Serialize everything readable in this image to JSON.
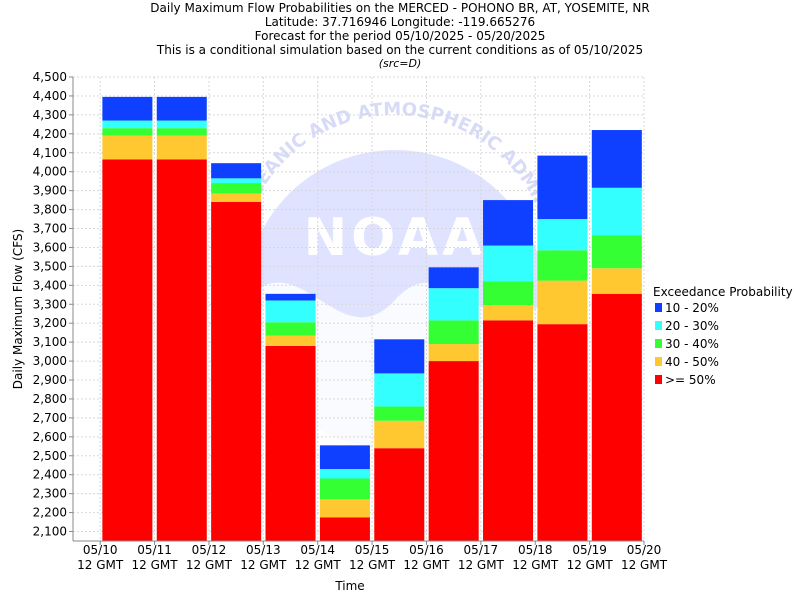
{
  "chart_data": {
    "type": "bar",
    "stacked": true,
    "title_lines": [
      "Daily Maximum Flow Probabilities on the MERCED - POHONO BR, AT, YOSEMITE, NR",
      "Latitude: 37.716946 Longitude: -119.665276",
      "Forecast for the period 05/10/2025 - 05/20/2025",
      "This is a conditional simulation based on the current conditions as of 05/10/2025"
    ],
    "subtitle": "(src=D)",
    "xlabel": "Time",
    "ylabel": "Daily Maximum Flow (CFS)",
    "ylim": [
      2050,
      4500
    ],
    "yticks": [
      2100,
      2200,
      2300,
      2400,
      2500,
      2600,
      2700,
      2800,
      2900,
      3000,
      3100,
      3200,
      3300,
      3400,
      3500,
      3600,
      3700,
      3800,
      3900,
      4000,
      4100,
      4200,
      4300,
      4400,
      4500
    ],
    "ytick_labels": [
      "2,100",
      "2,200",
      "2,300",
      "2,400",
      "2,500",
      "2,600",
      "2,700",
      "2,800",
      "2,900",
      "3,000",
      "3,100",
      "3,200",
      "3,300",
      "3,400",
      "3,500",
      "3,600",
      "3,700",
      "3,800",
      "3,900",
      "4,000",
      "4,100",
      "4,200",
      "4,300",
      "4,400",
      "4,500"
    ],
    "xticks": [
      {
        "date": "05/10",
        "time": "12 GMT"
      },
      {
        "date": "05/11",
        "time": "12 GMT"
      },
      {
        "date": "05/12",
        "time": "12 GMT"
      },
      {
        "date": "05/13",
        "time": "12 GMT"
      },
      {
        "date": "05/14",
        "time": "12 GMT"
      },
      {
        "date": "05/15",
        "time": "12 GMT"
      },
      {
        "date": "05/16",
        "time": "12 GMT"
      },
      {
        "date": "05/17",
        "time": "12 GMT"
      },
      {
        "date": "05/18",
        "time": "12 GMT"
      },
      {
        "date": "05/19",
        "time": "12 GMT"
      },
      {
        "date": "05/20",
        "time": "12 GMT"
      }
    ],
    "categories": [
      "05/10",
      "05/11",
      "05/12",
      "05/13",
      "05/14",
      "05/15",
      "05/16",
      "05/17",
      "05/18",
      "05/19"
    ],
    "series": [
      {
        "name": ">= 50%",
        "color": "#ff0000",
        "top": [
          4065,
          4065,
          3840,
          3080,
          2175,
          2540,
          3000,
          3215,
          3195,
          3355
        ]
      },
      {
        "name": "40 - 50%",
        "color": "#ffc830",
        "top": [
          4190,
          4190,
          3885,
          3135,
          2270,
          2685,
          3090,
          3295,
          3425,
          3490
        ]
      },
      {
        "name": "30 - 40%",
        "color": "#33ff33",
        "top": [
          4230,
          4230,
          3940,
          3205,
          2380,
          2760,
          3215,
          3420,
          3585,
          3665
        ]
      },
      {
        "name": "20 - 30%",
        "color": "#33ffff",
        "top": [
          4270,
          4270,
          3965,
          3320,
          2430,
          2935,
          3385,
          3610,
          3750,
          3915
        ]
      },
      {
        "name": "10 - 20%",
        "color": "#1040ff",
        "top": [
          4395,
          4395,
          4045,
          3355,
          2555,
          3115,
          3495,
          3850,
          4085,
          4220
        ]
      }
    ],
    "legend_title": "Exceedance Probability",
    "legend_order": [
      "10 - 20%",
      "20 - 30%",
      "30 - 40%",
      "40 - 50%",
      ">= 50%"
    ],
    "legend_position": "right",
    "grid": true,
    "watermark_text": "NOAA",
    "watermark_ring_text": "NATIONAL OCEANIC AND ATMOSPHERIC ADMINISTRATION"
  }
}
